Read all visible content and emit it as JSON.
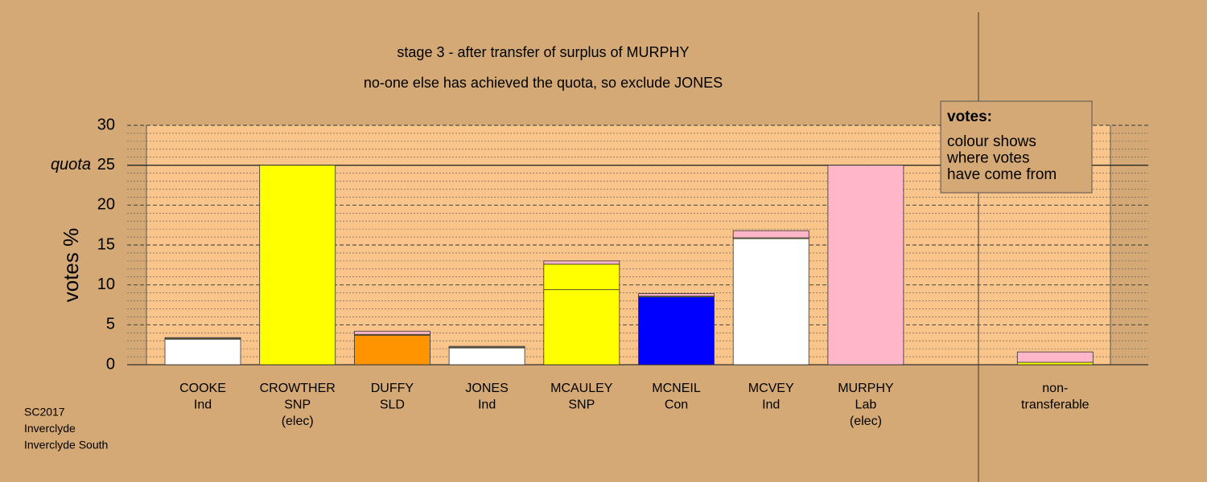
{
  "chart_data": {
    "type": "stacked_bar",
    "title": [
      "stage 3 - after transfer of surplus of MURPHY",
      "no-one else has achieved the quota, so exclude JONES"
    ],
    "ylabel": "votes %",
    "ylim": [
      0,
      30
    ],
    "yticks": [
      0,
      5,
      10,
      15,
      20,
      25,
      30
    ],
    "grid": true,
    "quota": {
      "value": 25,
      "label": "quota"
    },
    "bars": [
      {
        "label": [
          "COOKE",
          "Ind"
        ],
        "segments": [
          {
            "color": "#ffffff",
            "value": 3.2
          },
          {
            "color": "#ffff00",
            "value": 0.1
          },
          {
            "color": "#ffb6c8",
            "value": 0.1
          }
        ]
      },
      {
        "label": [
          "CROWTHER",
          "SNP",
          "(elec)"
        ],
        "segments": [
          {
            "color": "#ffff00",
            "value": 25
          }
        ]
      },
      {
        "label": [
          "DUFFY",
          "SLD"
        ],
        "segments": [
          {
            "color": "#ff9400",
            "value": 3.7
          },
          {
            "color": "#ffff00",
            "value": 0.1
          },
          {
            "color": "#ffb6c8",
            "value": 0.4
          }
        ]
      },
      {
        "label": [
          "JONES",
          "Ind"
        ],
        "segments": [
          {
            "color": "#ffffff",
            "value": 2.1
          },
          {
            "color": "#ffff00",
            "value": 0.1
          },
          {
            "color": "#ffb6c8",
            "value": 0.1
          }
        ]
      },
      {
        "label": [
          "MCAULEY",
          "SNP"
        ],
        "segments": [
          {
            "color": "#ffff00",
            "value": 9.4
          },
          {
            "color": "#ffff00",
            "value": 3.2
          },
          {
            "color": "#ffb6c8",
            "value": 0.4
          }
        ]
      },
      {
        "label": [
          "MCNEIL",
          "Con"
        ],
        "segments": [
          {
            "color": "#0000ff",
            "value": 8.5
          },
          {
            "color": "#ffff00",
            "value": 0.1
          },
          {
            "color": "#ffb6c8",
            "value": 0.3
          }
        ]
      },
      {
        "label": [
          "MCVEY",
          "Ind"
        ],
        "segments": [
          {
            "color": "#ffffff",
            "value": 15.8
          },
          {
            "color": "#ffff00",
            "value": 0.1
          },
          {
            "color": "#ffb6c8",
            "value": 0.9
          }
        ]
      },
      {
        "label": [
          "MURPHY",
          "Lab",
          "(elec)"
        ],
        "segments": [
          {
            "color": "#ffb6c8",
            "value": 25
          }
        ]
      },
      {
        "label": [
          "non-",
          "transferable"
        ],
        "segments": [
          {
            "color": "#ffff00",
            "value": 0.3
          },
          {
            "color": "#ffb6c8",
            "value": 1.3
          }
        ]
      }
    ],
    "legend": {
      "title": "votes:",
      "lines": [
        "colour shows",
        "where votes",
        "have come from"
      ]
    },
    "footer": [
      "SC2017",
      "Inverclyde",
      "Inverclyde South"
    ]
  }
}
